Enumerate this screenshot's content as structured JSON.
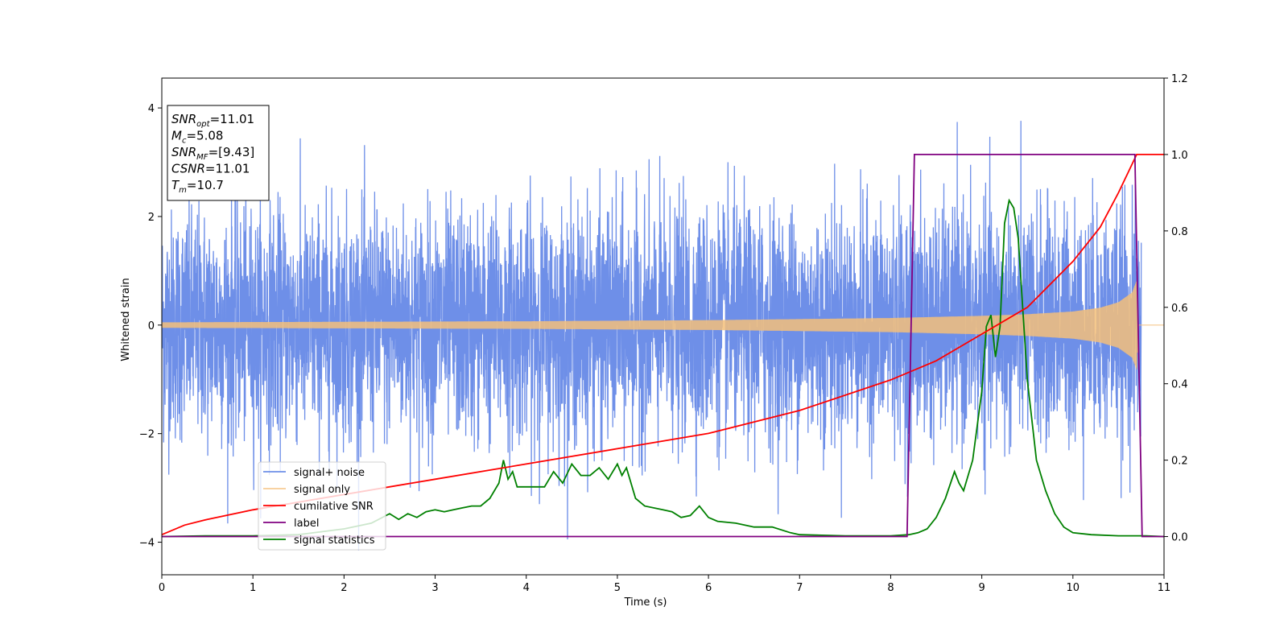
{
  "chart_data": {
    "type": "line",
    "xlabel": "Time (s)",
    "ylabel": "Whitened strain",
    "xlim": [
      0,
      11
    ],
    "ylim": [
      -4.6,
      4.55
    ],
    "y2lim": [
      -0.1,
      1.2
    ],
    "x_ticks": [
      "0",
      "1",
      "2",
      "3",
      "4",
      "5",
      "6",
      "7",
      "8",
      "9",
      "10",
      "11"
    ],
    "y_ticks": [
      "−4",
      "−2",
      "0",
      "2",
      "4"
    ],
    "y2_ticks": [
      "0.0",
      "0.2",
      "0.4",
      "0.6",
      "0.8",
      "1.0",
      "1.2"
    ],
    "legend": {
      "placement": "lower-left",
      "entries": [
        "signal+ noise",
        "signal only",
        "cumilative SNR",
        "label",
        "signal statistics"
      ]
    },
    "annotation": {
      "snr_opt": {
        "sym": "SNR",
        "sub": "opt",
        "val": "=11.01"
      },
      "mc": {
        "sym": "M",
        "sub": "c",
        "val": "=5.08"
      },
      "snr_mf": {
        "sym": "SNR",
        "sub": "MF",
        "val": "=[9.43]"
      },
      "csnr": {
        "sym": "CSNR",
        "val": "=11.01"
      },
      "tm": {
        "sym": "T",
        "sub": "m",
        "val": "=10.7"
      }
    },
    "colors": {
      "noise": "#6e8fe8",
      "signal": "#f4c07a",
      "cumulative": "#ff0000",
      "label": "#800080",
      "statistics": "#008000"
    },
    "series": [
      {
        "name": "signal+ noise",
        "axis": "left",
        "description_values": {
          "t_start": 0,
          "t_end": 10.75,
          "typical_amplitude": 2.0,
          "max_peaks": [
            4.1,
            4.15,
            -4.15,
            -4.05
          ]
        }
      },
      {
        "name": "signal only",
        "axis": "left",
        "envelope": {
          "t": [
            0,
            2,
            4,
            6,
            8,
            9,
            9.5,
            10,
            10.3,
            10.5,
            10.65,
            10.7,
            10.72
          ],
          "amp": [
            0.05,
            0.06,
            0.07,
            0.09,
            0.13,
            0.17,
            0.2,
            0.25,
            0.32,
            0.42,
            0.6,
            0.82,
            0.0
          ]
        }
      },
      {
        "name": "cumilative SNR",
        "axis": "right",
        "x": [
          0,
          0.25,
          0.5,
          1,
          2,
          3,
          4,
          5,
          6,
          7,
          8,
          8.5,
          9,
          9.5,
          10,
          10.3,
          10.5,
          10.6,
          10.7,
          11
        ],
        "y": [
          0.005,
          0.03,
          0.045,
          0.07,
          0.11,
          0.15,
          0.19,
          0.23,
          0.27,
          0.33,
          0.41,
          0.46,
          0.53,
          0.6,
          0.72,
          0.81,
          0.9,
          0.95,
          1.0,
          1.0
        ]
      },
      {
        "name": "label",
        "axis": "right",
        "x": [
          0,
          8.18,
          8.26,
          10.68,
          10.76,
          11
        ],
        "y": [
          0,
          0,
          1,
          1,
          0,
          0
        ]
      },
      {
        "name": "signal statistics",
        "axis": "right",
        "x": [
          0,
          0.5,
          1,
          1.5,
          2,
          2.3,
          2.5,
          2.6,
          2.7,
          2.8,
          2.9,
          3.0,
          3.1,
          3.2,
          3.3,
          3.4,
          3.5,
          3.6,
          3.7,
          3.75,
          3.8,
          3.85,
          3.9,
          4.0,
          4.2,
          4.3,
          4.4,
          4.5,
          4.6,
          4.7,
          4.8,
          4.9,
          5.0,
          5.05,
          5.1,
          5.2,
          5.25,
          5.3,
          5.5,
          5.6,
          5.7,
          5.8,
          5.9,
          6.0,
          6.1,
          6.3,
          6.5,
          6.7,
          6.9,
          7.0,
          7.5,
          8.0,
          8.2,
          8.3,
          8.4,
          8.5,
          8.6,
          8.7,
          8.75,
          8.8,
          8.9,
          9.0,
          9.05,
          9.1,
          9.15,
          9.2,
          9.25,
          9.3,
          9.35,
          9.4,
          9.5,
          9.6,
          9.7,
          9.8,
          9.9,
          10.0,
          10.2,
          10.5,
          10.8,
          11.0
        ],
        "y": [
          0.0,
          0.002,
          0.002,
          0.005,
          0.02,
          0.035,
          0.06,
          0.045,
          0.06,
          0.05,
          0.065,
          0.07,
          0.065,
          0.07,
          0.075,
          0.08,
          0.08,
          0.1,
          0.14,
          0.2,
          0.15,
          0.17,
          0.13,
          0.13,
          0.13,
          0.17,
          0.14,
          0.19,
          0.16,
          0.16,
          0.18,
          0.15,
          0.19,
          0.16,
          0.18,
          0.1,
          0.09,
          0.08,
          0.07,
          0.065,
          0.05,
          0.055,
          0.08,
          0.05,
          0.04,
          0.035,
          0.025,
          0.025,
          0.01,
          0.005,
          0.002,
          0.002,
          0.005,
          0.01,
          0.02,
          0.05,
          0.1,
          0.17,
          0.14,
          0.12,
          0.2,
          0.38,
          0.55,
          0.58,
          0.47,
          0.55,
          0.82,
          0.88,
          0.86,
          0.78,
          0.41,
          0.2,
          0.12,
          0.06,
          0.025,
          0.01,
          0.005,
          0.002,
          0.002,
          0.0
        ]
      }
    ]
  }
}
